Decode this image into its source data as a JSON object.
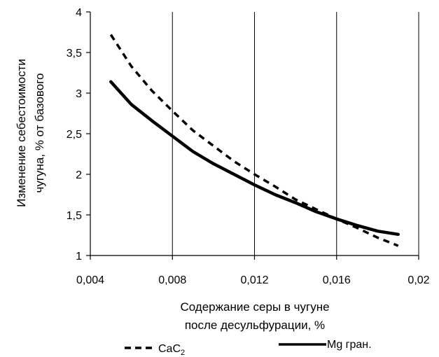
{
  "chart_data": {
    "type": "line",
    "xlabel_lines": [
      "Содержание серы в чугуне",
      "после десульфурации, %"
    ],
    "ylabel_lines": [
      "Изменение себестоимости",
      "чугуна, % от базового"
    ],
    "xlim": [
      0.004,
      0.02
    ],
    "ylim": [
      1,
      4
    ],
    "x_ticks": [
      {
        "value": 0.004,
        "label": "0,004"
      },
      {
        "value": 0.008,
        "label": "0,008"
      },
      {
        "value": 0.012,
        "label": "0,012"
      },
      {
        "value": 0.016,
        "label": "0,016"
      },
      {
        "value": 0.02,
        "label": "0,02"
      }
    ],
    "y_ticks": [
      {
        "value": 1,
        "label": "1"
      },
      {
        "value": 1.5,
        "label": "1,5"
      },
      {
        "value": 2,
        "label": "2"
      },
      {
        "value": 2.5,
        "label": "2,5"
      },
      {
        "value": 3,
        "label": "3"
      },
      {
        "value": 3.5,
        "label": "3,5"
      },
      {
        "value": 4,
        "label": "4"
      }
    ],
    "grid": true,
    "legend_position": "bottom",
    "series": [
      {
        "name": "CaC",
        "name_subscript": "2",
        "style": "dashed",
        "color": "#000000",
        "x": [
          0.005,
          0.006,
          0.007,
          0.008,
          0.009,
          0.01,
          0.011,
          0.012,
          0.013,
          0.014,
          0.015,
          0.016,
          0.017,
          0.018,
          0.019
        ],
        "y": [
          3.72,
          3.33,
          3.03,
          2.78,
          2.54,
          2.35,
          2.16,
          2.0,
          1.85,
          1.69,
          1.57,
          1.45,
          1.34,
          1.22,
          1.12
        ]
      },
      {
        "name": "Mg гран.",
        "style": "solid",
        "color": "#000000",
        "x": [
          0.005,
          0.006,
          0.007,
          0.008,
          0.009,
          0.01,
          0.011,
          0.012,
          0.013,
          0.014,
          0.015,
          0.016,
          0.017,
          0.018,
          0.019
        ],
        "y": [
          3.14,
          2.86,
          2.66,
          2.47,
          2.28,
          2.13,
          2.0,
          1.87,
          1.75,
          1.65,
          1.54,
          1.45,
          1.37,
          1.3,
          1.26
        ]
      }
    ]
  }
}
